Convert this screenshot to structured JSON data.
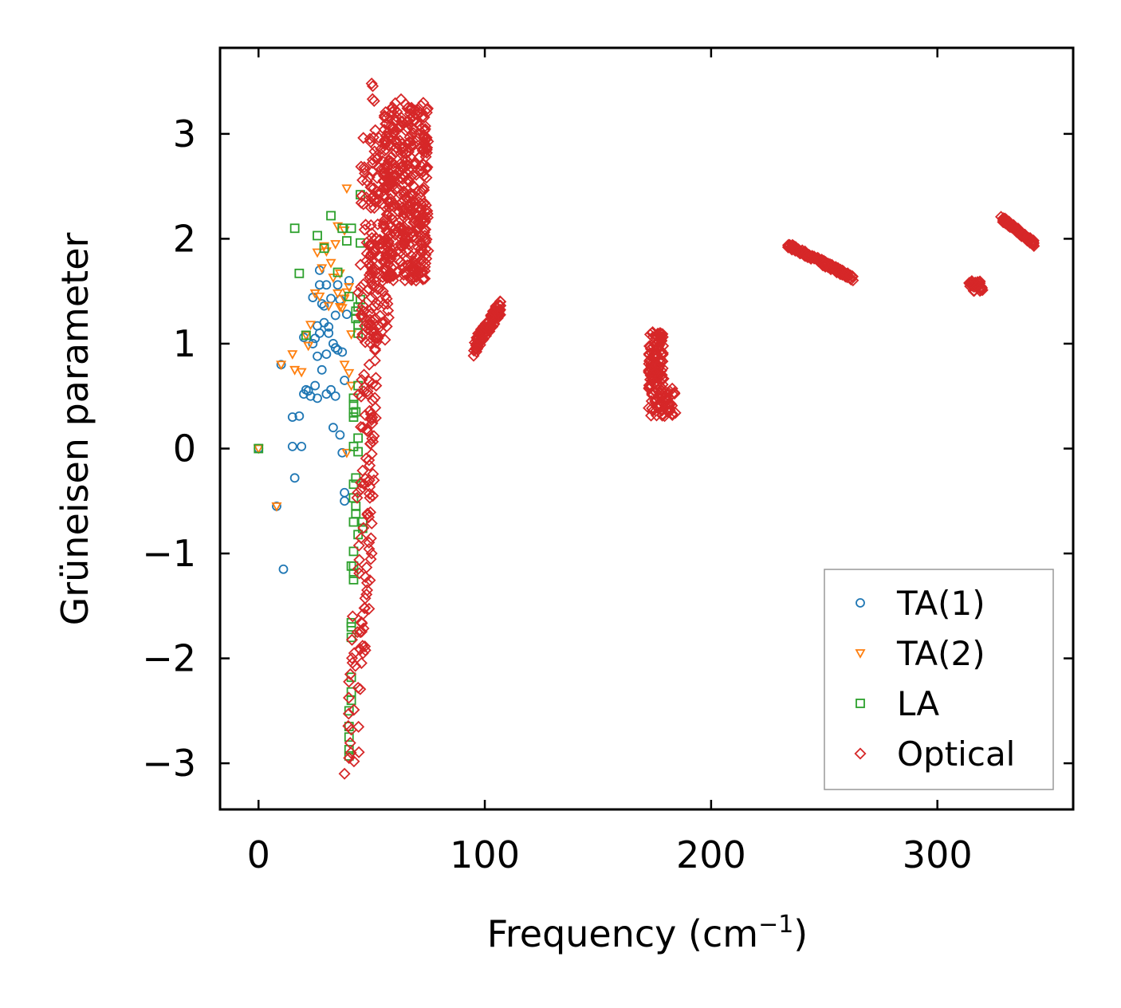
{
  "chart_data": {
    "type": "scatter",
    "title": "",
    "xlabel": "Frequency (cm",
    "xlabel_sup": "−1",
    "xlabel_close": ")",
    "ylabel": "Grüneisen parameter",
    "xlim": [
      -17,
      360
    ],
    "ylim": [
      -3.44,
      3.82
    ],
    "x_ticks": [
      0,
      100,
      200,
      300
    ],
    "x_tick_labels": [
      "0",
      "100",
      "200",
      "300"
    ],
    "y_ticks": [
      -3,
      -2,
      -1,
      0,
      1,
      2,
      3
    ],
    "y_tick_labels": [
      "−3",
      "−2",
      "−1",
      "0",
      "1",
      "2",
      "3"
    ],
    "grid": false,
    "legend_position": "lower-right",
    "series": [
      {
        "name": "TA(1)",
        "label": "TA(1)",
        "marker": "circle",
        "color": "#1f77b4",
        "points": [
          [
            0,
            0
          ],
          [
            8,
            -0.55
          ],
          [
            10,
            0.8
          ],
          [
            11,
            -1.15
          ],
          [
            15,
            0.3
          ],
          [
            15,
            0.02
          ],
          [
            16,
            -0.28
          ],
          [
            18,
            0.31
          ],
          [
            19,
            0.02
          ],
          [
            20,
            0.52
          ],
          [
            20,
            1.06
          ],
          [
            21,
            0.56
          ],
          [
            22,
            0.55
          ],
          [
            23,
            0.5
          ],
          [
            24,
            1.44
          ],
          [
            24,
            1.0
          ],
          [
            25,
            0.6
          ],
          [
            25,
            1.05
          ],
          [
            26,
            0.48
          ],
          [
            26,
            1.17
          ],
          [
            26,
            0.88
          ],
          [
            27,
            1.56
          ],
          [
            27,
            1.1
          ],
          [
            28,
            0.75
          ],
          [
            28,
            1.38
          ],
          [
            29,
            1.36
          ],
          [
            29,
            1.2
          ],
          [
            30,
            0.52
          ],
          [
            30,
            1.56
          ],
          [
            30,
            0.9
          ],
          [
            31,
            1.1
          ],
          [
            31,
            1.16
          ],
          [
            32,
            0.56
          ],
          [
            32,
            1.43
          ],
          [
            33,
            1.0
          ],
          [
            33,
            0.2
          ],
          [
            34,
            1.27
          ],
          [
            34,
            0.96
          ],
          [
            34,
            0.5
          ],
          [
            35,
            1.56
          ],
          [
            35,
            0.94
          ],
          [
            36,
            0.13
          ],
          [
            36,
            1.42
          ],
          [
            37,
            0.92
          ],
          [
            37,
            -0.04
          ],
          [
            38,
            -0.42
          ],
          [
            38,
            -0.5
          ],
          [
            38,
            0.65
          ],
          [
            39,
            1.28
          ],
          [
            40,
            1.6
          ],
          [
            27,
            1.7
          ]
        ]
      },
      {
        "name": "TA(2)",
        "label": "TA(2)",
        "marker": "triangle-down",
        "color": "#ff7f0e",
        "points": [
          [
            0,
            0
          ],
          [
            8,
            -0.55
          ],
          [
            10,
            0.8
          ],
          [
            15,
            0.9
          ],
          [
            16,
            0.75
          ],
          [
            19,
            0.73
          ],
          [
            21,
            1.08
          ],
          [
            22,
            0.98
          ],
          [
            23,
            1.18
          ],
          [
            25,
            1.48
          ],
          [
            26,
            1.87
          ],
          [
            27,
            1.45
          ],
          [
            28,
            1.72
          ],
          [
            29,
            1.93
          ],
          [
            30,
            1.88
          ],
          [
            31,
            1.36
          ],
          [
            32,
            1.77
          ],
          [
            33,
            1.63
          ],
          [
            34,
            1.95
          ],
          [
            35,
            2.12
          ],
          [
            35,
            1.48
          ],
          [
            36,
            1.67
          ],
          [
            37,
            1.34
          ],
          [
            38,
            2.08
          ],
          [
            38,
            1.43
          ],
          [
            39,
            2.48
          ],
          [
            39,
            1.49
          ],
          [
            40,
            0.72
          ],
          [
            40,
            1.54
          ],
          [
            41,
            1.09
          ],
          [
            41,
            0.6
          ],
          [
            39,
            -0.04
          ],
          [
            38,
            0.8
          ],
          [
            36,
            1.35
          ]
        ]
      },
      {
        "name": "LA",
        "label": "LA",
        "marker": "square",
        "color": "#2ca02c",
        "points": [
          [
            0,
            0
          ],
          [
            16,
            2.1
          ],
          [
            18,
            1.67
          ],
          [
            21,
            1.08
          ],
          [
            26,
            2.03
          ],
          [
            29,
            1.91
          ],
          [
            32,
            2.22
          ],
          [
            35,
            1.68
          ],
          [
            37,
            2.1
          ],
          [
            39,
            1.98
          ],
          [
            40,
            1.45
          ],
          [
            41,
            2.1
          ],
          [
            42,
            0.34
          ],
          [
            42,
            0.3
          ],
          [
            42,
            0.42
          ],
          [
            42,
            0.48
          ],
          [
            42,
            0.02
          ],
          [
            42,
            -0.34
          ],
          [
            42,
            -0.47
          ],
          [
            43,
            -0.55
          ],
          [
            42,
            -0.98
          ],
          [
            41,
            -1.12
          ],
          [
            42,
            -1.12
          ],
          [
            42,
            -1.25
          ],
          [
            41,
            -1.66
          ],
          [
            41,
            -1.7
          ],
          [
            41,
            -1.8
          ],
          [
            41,
            -2.18
          ],
          [
            41,
            -2.32
          ],
          [
            40,
            -2.5
          ],
          [
            40,
            -2.65
          ],
          [
            40,
            -2.75
          ],
          [
            40,
            -2.87
          ],
          [
            40,
            -2.93
          ],
          [
            41,
            -2.4
          ],
          [
            43,
            1.24
          ],
          [
            43,
            1.31
          ],
          [
            44,
            1.18
          ],
          [
            44,
            1.1
          ],
          [
            44,
            1.35
          ],
          [
            45,
            1.42
          ],
          [
            44,
            0.6
          ],
          [
            43,
            0.35
          ],
          [
            44,
            0.1
          ],
          [
            45,
            1.96
          ],
          [
            45,
            2.42
          ],
          [
            46,
            -0.7
          ],
          [
            46,
            -0.76
          ],
          [
            44,
            -0.82
          ],
          [
            43,
            -0.28
          ],
          [
            44,
            -0.03
          ],
          [
            42,
            -1.19
          ],
          [
            43,
            -0.62
          ],
          [
            42,
            -0.7
          ]
        ]
      },
      {
        "name": "Optical",
        "label": "Optical",
        "marker": "diamond",
        "color": "#d62728",
        "groups": [
          {
            "x": [
              49,
              52
            ],
            "y": [
              -2,
              3.48
            ],
            "n": 80,
            "shape": "column"
          },
          {
            "x": [
              44,
              50
            ],
            "y": [
              -3.1,
              1.6
            ],
            "n": 70,
            "shape": "column"
          },
          {
            "x": [
              45,
              58
            ],
            "y": [
              1.0,
              3.0
            ],
            "n": 120,
            "shape": "blob"
          },
          {
            "x": [
              55,
              75
            ],
            "y": [
              1.6,
              3.3
            ],
            "n": 420,
            "shape": "blob"
          },
          {
            "x": [
              95,
              107
            ],
            "y": [
              0.88,
              1.38
            ],
            "n": 110,
            "shape": "band"
          },
          {
            "x": [
              170,
              186
            ],
            "y": [
              0.3,
              1.12
            ],
            "n": 160,
            "shape": "pillar"
          },
          {
            "x": [
              234,
              263
            ],
            "y": [
              1.62,
              1.94
            ],
            "n": 140,
            "shape": "line"
          },
          {
            "x": [
              314,
              320
            ],
            "y": [
              1.5,
              1.6
            ],
            "n": 30,
            "shape": "blob"
          },
          {
            "x": [
              328,
              343
            ],
            "y": [
              1.95,
              2.2
            ],
            "n": 80,
            "shape": "line"
          }
        ],
        "points": [
          [
            50,
            -1.0
          ],
          [
            48,
            -1.28
          ],
          [
            47,
            -1.52
          ],
          [
            46,
            -1.88
          ],
          [
            44,
            -2.28
          ],
          [
            41,
            -2.68
          ],
          [
            38,
            -3.1
          ],
          [
            40,
            -2.95
          ],
          [
            45,
            -1.75
          ],
          [
            49,
            -0.3
          ],
          [
            51,
            0.12
          ],
          [
            52,
            0.6
          ],
          [
            53,
            1.07
          ],
          [
            55,
            1.5
          ],
          [
            57,
            1.38
          ],
          [
            50,
            3.48
          ],
          [
            63,
            3.33
          ],
          [
            66,
            3.25
          ],
          [
            74,
            2.32
          ],
          [
            72,
            1.8
          ]
        ]
      }
    ]
  }
}
